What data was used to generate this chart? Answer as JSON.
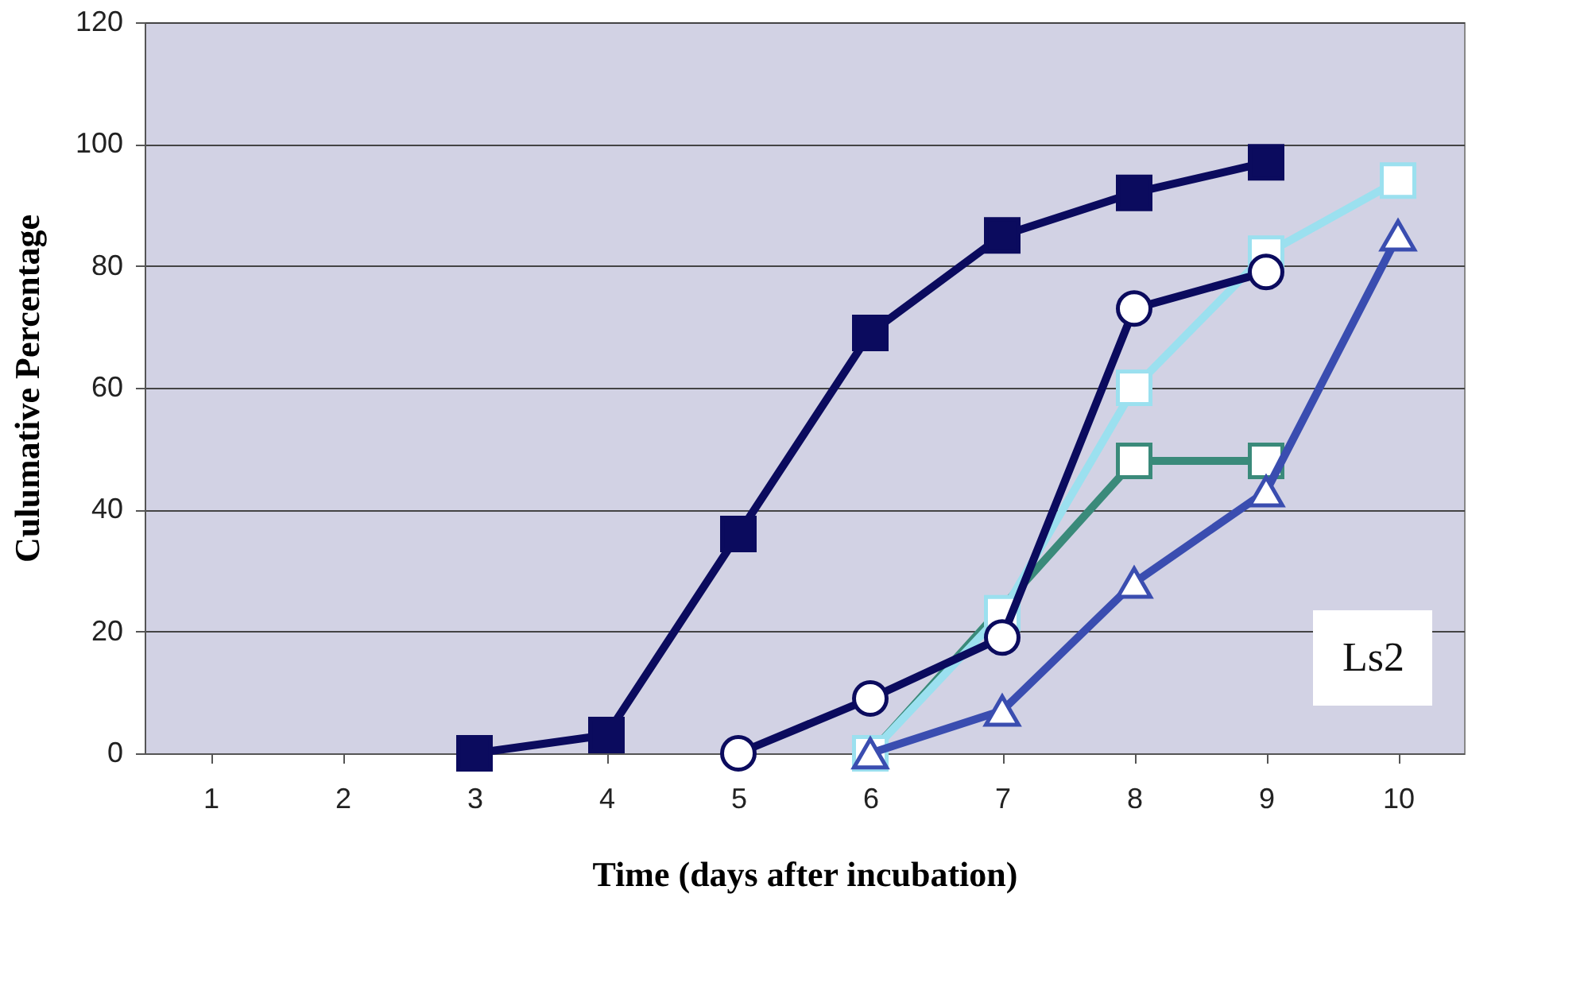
{
  "chart_data": {
    "type": "line",
    "xlabel": "Time (days after incubation)",
    "ylabel": "Culumative Percentage",
    "categories": [
      "1",
      "2",
      "3",
      "4",
      "5",
      "6",
      "7",
      "8",
      "9",
      "10"
    ],
    "ylim": [
      0,
      120
    ],
    "yticks": [
      0,
      20,
      40,
      60,
      80,
      100,
      120
    ],
    "grid": "y",
    "line_style": "solid",
    "annotations": [
      "Ls2"
    ],
    "series": [
      {
        "color": "#0b0b5e",
        "marker": "square",
        "values": [
          null,
          null,
          0,
          3,
          36,
          69,
          85,
          92,
          97,
          null
        ]
      },
      {
        "color": "#3a8a7a",
        "marker": "square",
        "values": [
          null,
          null,
          null,
          null,
          null,
          0,
          null,
          48,
          48,
          null
        ]
      },
      {
        "color": "#9be0ef",
        "marker": "square",
        "values": [
          null,
          null,
          null,
          null,
          null,
          0,
          23,
          60,
          82,
          94
        ]
      },
      {
        "color": "#3a4db0",
        "marker": "triangle",
        "values": [
          null,
          null,
          null,
          null,
          null,
          0,
          7,
          28,
          43,
          85
        ]
      },
      {
        "color": "#0b0b5e",
        "marker": "circle",
        "values": [
          null,
          null,
          null,
          null,
          0,
          9,
          19,
          73,
          79,
          null
        ]
      }
    ]
  }
}
